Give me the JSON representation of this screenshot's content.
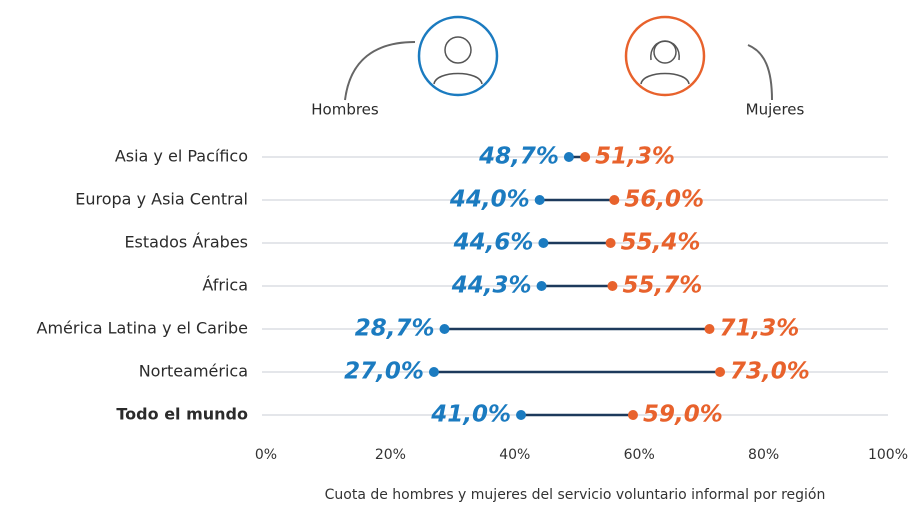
{
  "chart_data": {
    "type": "dumbbell",
    "x_label": "Cuota de hombres y mujeres del servicio voluntario informal por región",
    "categories": [
      "Asia y el Pacífico",
      "Europa y Asia Central",
      "Estados Árabes",
      "África",
      "América Latina y el Caribe",
      "Norteamérica",
      "Todo el mundo"
    ],
    "series": [
      {
        "name": "Hombres",
        "color": "#1b7bc0",
        "values": [
          48.7,
          44.0,
          44.6,
          44.3,
          28.7,
          27.0,
          41.0
        ],
        "value_labels": [
          "48,7%",
          "44,0%",
          "44,6%",
          "44,3%",
          "28,7%",
          "27,0%",
          "41,0%"
        ]
      },
      {
        "name": "Mujeres",
        "color": "#e8622c",
        "values": [
          51.3,
          56.0,
          55.4,
          55.7,
          71.3,
          73.0,
          59.0
        ],
        "value_labels": [
          "51,3%",
          "56,0%",
          "55,4%",
          "55,7%",
          "71,3%",
          "73,0%",
          "59,0%"
        ]
      }
    ],
    "connector_color": "#1d3a5c",
    "xlim": [
      0,
      100
    ],
    "xticks": [
      {
        "value": 0,
        "label": "0%"
      },
      {
        "value": 20,
        "label": "20%"
      },
      {
        "value": 40,
        "label": "40%"
      },
      {
        "value": 60,
        "label": "60%"
      },
      {
        "value": 80,
        "label": "80%"
      },
      {
        "value": 100,
        "label": "100%"
      }
    ],
    "grid": true
  }
}
